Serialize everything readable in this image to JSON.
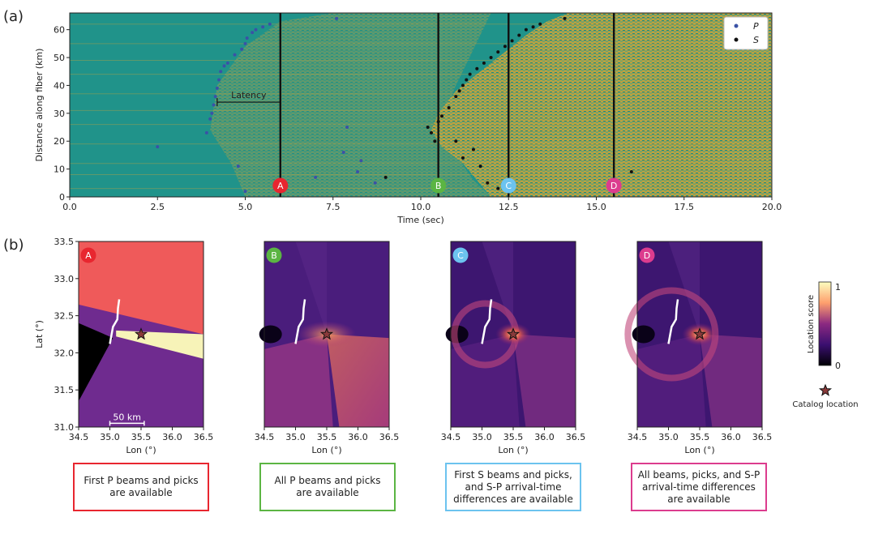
{
  "panel_labels": {
    "a": "(a)",
    "b": "(b)"
  },
  "markers": [
    {
      "letter": "A",
      "time": 6.0,
      "color": "#e8262f"
    },
    {
      "letter": "B",
      "time": 10.5,
      "color": "#5bb543"
    },
    {
      "letter": "C",
      "time": 12.5,
      "color": "#6cc3ef"
    },
    {
      "letter": "D",
      "time": 15.5,
      "color": "#dc3c8e"
    }
  ],
  "latency_label": "Latency",
  "legend": {
    "p": "P",
    "s": "S"
  },
  "colorbar": {
    "label": "Location score",
    "max_label": "1",
    "min_label": "0"
  },
  "catalog_label": "Catalog location",
  "scale_label": "50 km",
  "captions": [
    "First P beams and picks are available",
    "All P beams and picks are available",
    "First S beams and picks, and S-P arrival-time differences are available",
    "All beams, picks, and S-P arrival-time differences are available"
  ],
  "chart_data": [
    {
      "type": "scatter",
      "title": "(a)",
      "xlabel": "Time (sec)",
      "ylabel": "Distance along fiber (km)",
      "xlim": [
        0,
        20
      ],
      "ylim": [
        0,
        66
      ],
      "xticks": [
        "0.0",
        "2.5",
        "5.0",
        "7.5",
        "10.0",
        "12.5",
        "15.0",
        "17.5",
        "20.0"
      ],
      "yticks": [
        "0",
        "10",
        "20",
        "30",
        "40",
        "50",
        "60"
      ],
      "vertical_lines": [
        6.0,
        10.5,
        12.5,
        15.5
      ],
      "latency_arrow": {
        "from": 4.2,
        "to": 6.0,
        "y": 34
      },
      "series": [
        {
          "name": "P",
          "color": "#3a52a6",
          "points": [
            [
              2.5,
              18
            ],
            [
              3.9,
              23
            ],
            [
              4.0,
              28
            ],
            [
              4.05,
              30
            ],
            [
              4.1,
              33
            ],
            [
              4.15,
              36
            ],
            [
              4.2,
              39
            ],
            [
              4.25,
              42
            ],
            [
              4.3,
              45
            ],
            [
              4.4,
              47
            ],
            [
              4.5,
              48
            ],
            [
              4.7,
              51
            ],
            [
              4.9,
              53
            ],
            [
              5.0,
              55
            ],
            [
              5.05,
              57
            ],
            [
              5.2,
              59
            ],
            [
              5.3,
              60
            ],
            [
              5.5,
              61
            ],
            [
              5.7,
              62
            ],
            [
              7.6,
              64
            ],
            [
              4.8,
              11
            ],
            [
              5.0,
              2
            ],
            [
              7.0,
              7
            ],
            [
              7.8,
              16
            ],
            [
              8.2,
              9
            ],
            [
              8.3,
              13
            ],
            [
              7.9,
              25
            ],
            [
              8.7,
              5
            ]
          ]
        },
        {
          "name": "S",
          "color": "#111111",
          "points": [
            [
              9.0,
              7
            ],
            [
              10.2,
              25
            ],
            [
              10.3,
              23
            ],
            [
              10.4,
              20
            ],
            [
              10.5,
              27
            ],
            [
              10.6,
              29
            ],
            [
              10.8,
              32
            ],
            [
              11.0,
              36
            ],
            [
              11.1,
              38
            ],
            [
              11.2,
              40
            ],
            [
              11.3,
              42
            ],
            [
              11.4,
              44
            ],
            [
              11.6,
              46
            ],
            [
              11.8,
              48
            ],
            [
              12.0,
              50
            ],
            [
              12.2,
              52
            ],
            [
              12.4,
              54
            ],
            [
              12.6,
              56
            ],
            [
              12.8,
              58
            ],
            [
              13.0,
              60
            ],
            [
              13.2,
              61
            ],
            [
              13.4,
              62
            ],
            [
              14.1,
              64
            ],
            [
              11.0,
              20
            ],
            [
              11.5,
              17
            ],
            [
              11.2,
              14
            ],
            [
              11.7,
              11
            ],
            [
              11.9,
              5
            ],
            [
              12.2,
              3
            ],
            [
              16.0,
              9
            ]
          ]
        }
      ]
    },
    {
      "type": "heatmap",
      "title": "A",
      "xlabel": "Lon (°)",
      "ylabel": "Lat (°)",
      "xlim": [
        34.5,
        36.5
      ],
      "ylim": [
        31.0,
        33.5
      ],
      "xticks": [
        "34.5",
        "35.0",
        "35.5",
        "36.0",
        "36.5"
      ],
      "yticks": [
        "31.0",
        "31.5",
        "32.0",
        "32.5",
        "33.0",
        "33.5"
      ],
      "catalog_location": [
        35.5,
        32.25
      ]
    },
    {
      "type": "heatmap",
      "title": "B",
      "xlabel": "Lon (°)",
      "xlim": [
        34.5,
        36.5
      ],
      "ylim": [
        31.0,
        33.5
      ],
      "xticks": [
        "34.5",
        "35.0",
        "35.5",
        "36.0",
        "36.5"
      ],
      "catalog_location": [
        35.5,
        32.25
      ]
    },
    {
      "type": "heatmap",
      "title": "C",
      "xlabel": "Lon (°)",
      "xlim": [
        34.5,
        36.5
      ],
      "ylim": [
        31.0,
        33.5
      ],
      "xticks": [
        "34.5",
        "35.0",
        "35.5",
        "36.0",
        "36.5"
      ],
      "catalog_location": [
        35.5,
        32.25
      ]
    },
    {
      "type": "heatmap",
      "title": "D",
      "xlabel": "Lon (°)",
      "xlim": [
        34.5,
        36.5
      ],
      "ylim": [
        31.0,
        33.5
      ],
      "xticks": [
        "34.5",
        "35.0",
        "35.5",
        "36.0",
        "36.5"
      ],
      "catalog_location": [
        35.5,
        32.25
      ]
    }
  ]
}
